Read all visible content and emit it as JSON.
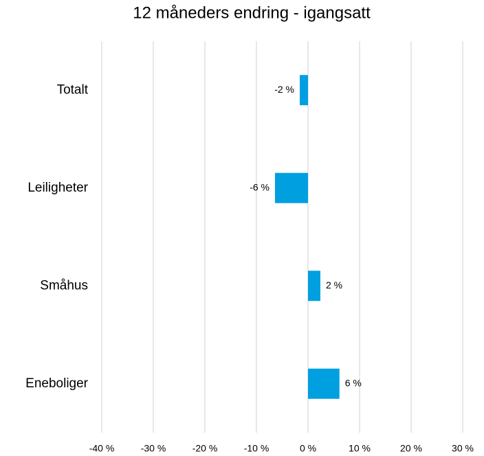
{
  "chart_data": {
    "type": "barh",
    "title": "12 måneders endring - igangsatt",
    "categories": [
      "Totalt",
      "Leiligheter",
      "Småhus",
      "Eneboliger"
    ],
    "values": [
      -1.6,
      -6.4,
      2.4,
      6.1
    ],
    "value_labels": [
      "-2 %",
      "-6 %",
      "2 %",
      "6 %"
    ],
    "color": "#00a0e0",
    "xlim": [
      -40,
      30
    ],
    "xticks": [
      {
        "value": -40,
        "label": "-40 %"
      },
      {
        "value": -30,
        "label": "-30 %"
      },
      {
        "value": -20,
        "label": "-20 %"
      },
      {
        "value": -10,
        "label": "-10 %"
      },
      {
        "value": 0,
        "label": "0 %"
      },
      {
        "value": 10,
        "label": "10 %"
      },
      {
        "value": 20,
        "label": "20 %"
      },
      {
        "value": 30,
        "label": "30 %"
      }
    ],
    "grid": true
  }
}
